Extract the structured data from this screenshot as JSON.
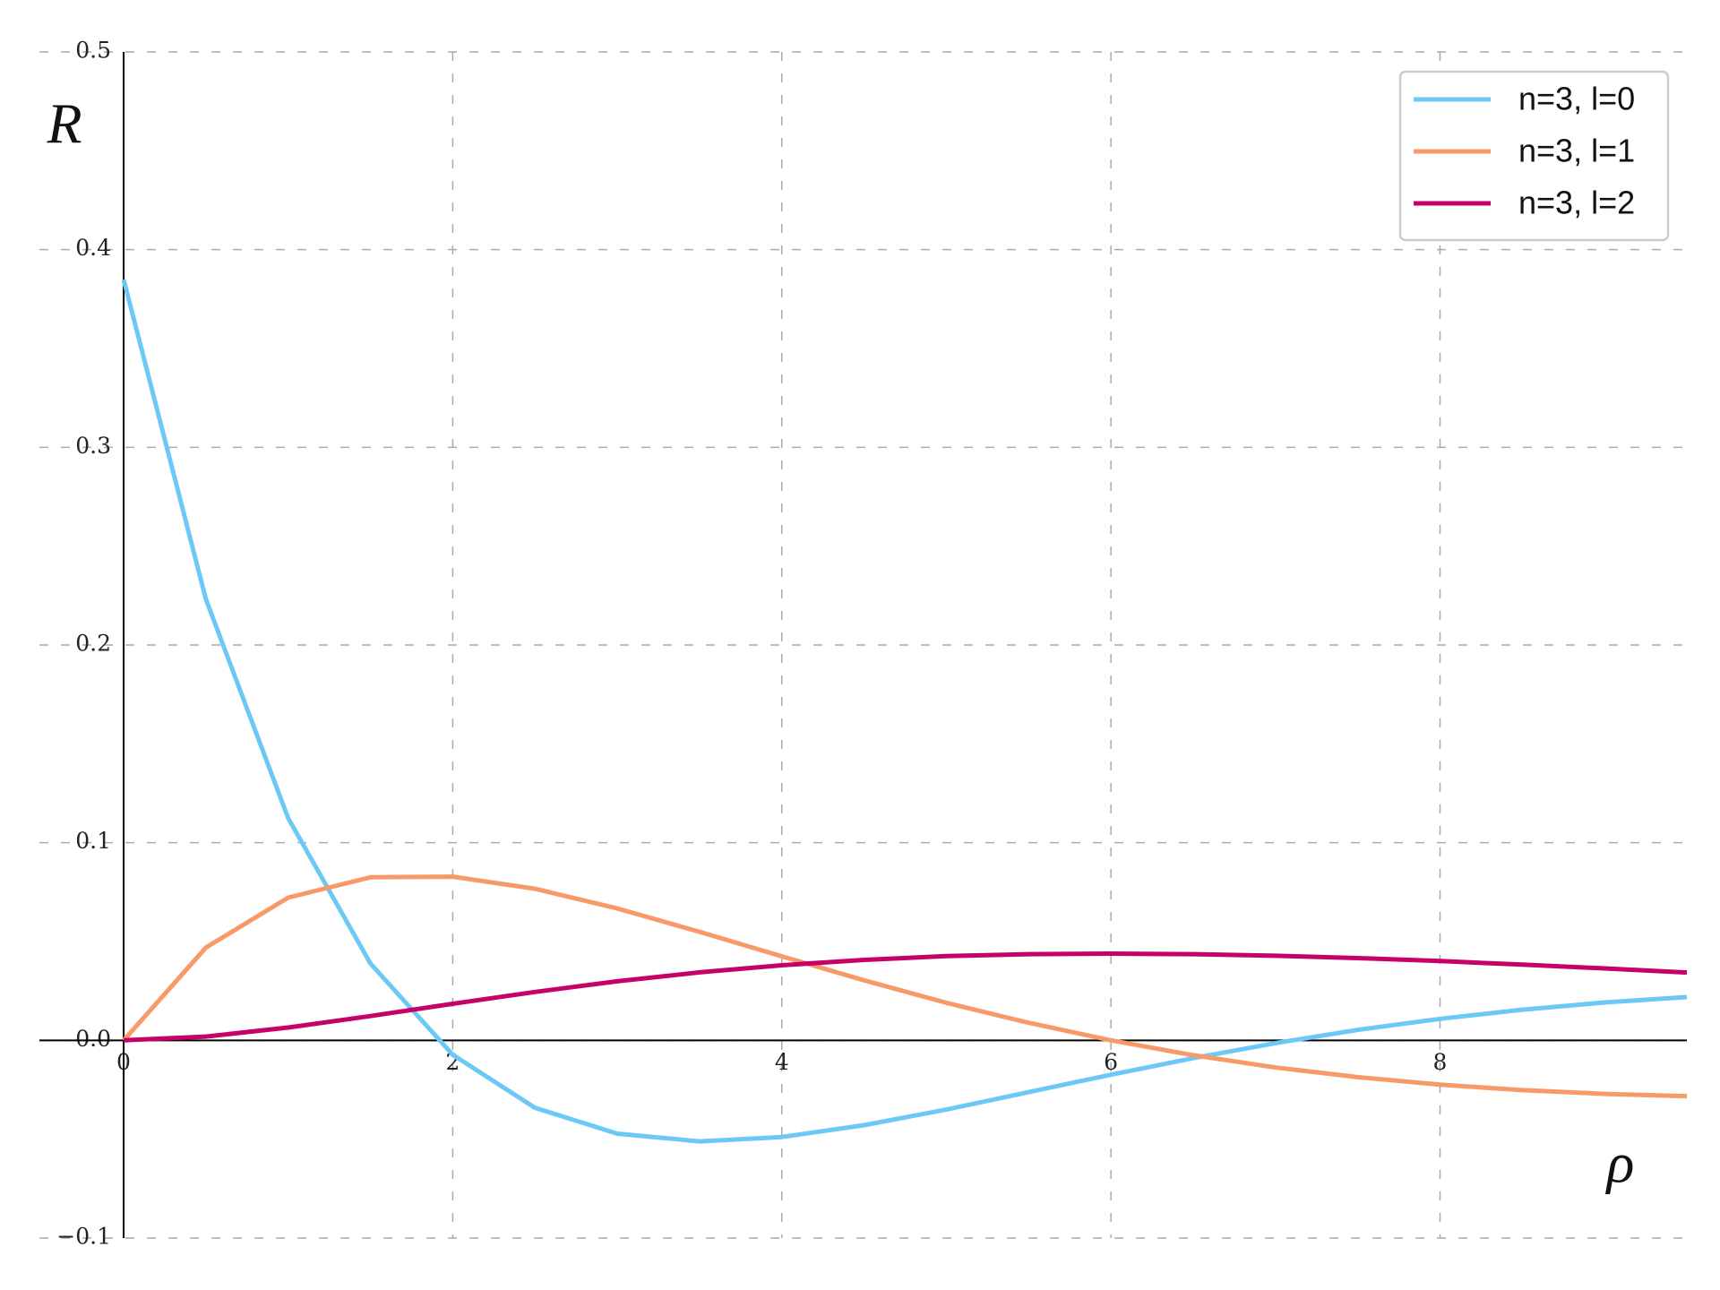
{
  "chart_data": {
    "type": "line",
    "xlabel": "ρ",
    "ylabel": "R",
    "x": [
      0,
      0.5,
      1,
      1.5,
      2,
      2.5,
      3,
      3.5,
      4,
      4.5,
      5,
      5.5,
      6,
      6.5,
      7,
      7.5,
      8,
      8.5,
      9,
      9.5
    ],
    "series": [
      {
        "name": "n=3, l=0",
        "color": "#6cc9f5",
        "values": [
          0.3849,
          0.2232,
          0.1124,
          0.0389,
          -0.0073,
          -0.0341,
          -0.0472,
          -0.0511,
          -0.0489,
          -0.0429,
          -0.035,
          -0.0262,
          -0.0174,
          -0.009,
          -0.0014,
          0.0053,
          0.0109,
          0.0155,
          0.0192,
          0.0219
        ]
      },
      {
        "name": "n=3, l=1",
        "color": "#f89a68",
        "values": [
          0,
          0.0469,
          0.0722,
          0.0825,
          0.0828,
          0.0767,
          0.0667,
          0.0549,
          0.0425,
          0.0304,
          0.019,
          0.0089,
          0,
          -0.0075,
          -0.0137,
          -0.0186,
          -0.0224,
          -0.0252,
          -0.0271,
          -0.0282
        ]
      },
      {
        "name": "n=3, l=2",
        "color": "#c8006a",
        "values": [
          0,
          0.0019,
          0.0065,
          0.0123,
          0.0185,
          0.0245,
          0.0299,
          0.0344,
          0.038,
          0.0407,
          0.0426,
          0.0436,
          0.0439,
          0.0436,
          0.0428,
          0.0416,
          0.0401,
          0.0383,
          0.0364,
          0.0343
        ]
      }
    ],
    "xlim": [
      0,
      9.5
    ],
    "xticks": [
      0,
      2,
      4,
      6,
      8
    ],
    "ylim": [
      -0.1,
      0.5
    ],
    "yticks": [
      {
        "value": -0.1,
        "label": "−0.1"
      },
      {
        "value": 0,
        "label": "0.0"
      },
      0.1,
      0.2,
      0.3,
      0.4,
      0.5
    ],
    "grid": true,
    "legend": "upper right"
  }
}
